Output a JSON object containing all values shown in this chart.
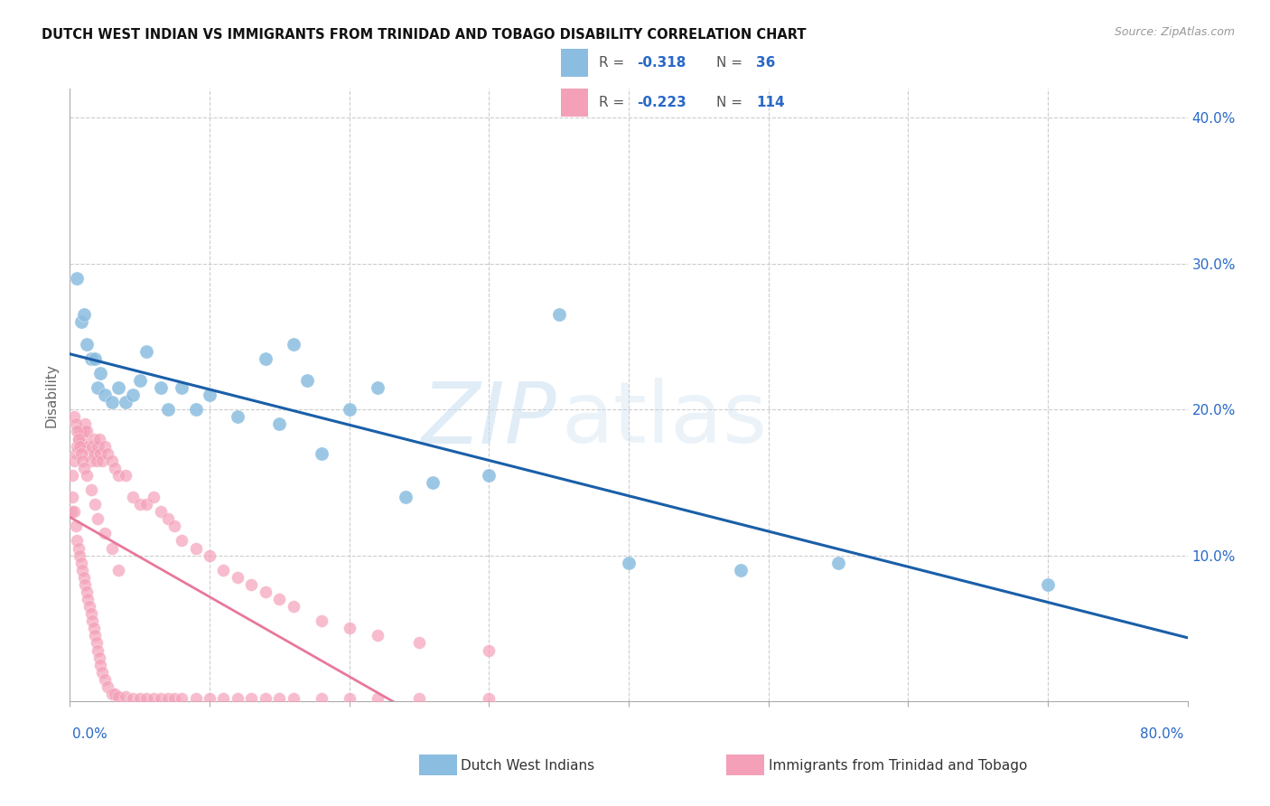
{
  "title": "DUTCH WEST INDIAN VS IMMIGRANTS FROM TRINIDAD AND TOBAGO DISABILITY CORRELATION CHART",
  "source": "Source: ZipAtlas.com",
  "ylabel": "Disability",
  "xmin": 0.0,
  "xmax": 0.8,
  "ymin": 0.0,
  "ymax": 0.42,
  "color_blue_scatter": "#8bbde0",
  "color_pink_scatter": "#f4a0b8",
  "color_blue_line": "#1a5fa8",
  "color_pink_line": "#e8789a",
  "color_text_blue": "#2868c8",
  "color_grid": "#cccccc",
  "r_blue": "-0.318",
  "n_blue": "36",
  "r_pink": "-0.223",
  "n_pink": "114",
  "blue_x": [
    0.005,
    0.008,
    0.01,
    0.012,
    0.015,
    0.018,
    0.02,
    0.022,
    0.025,
    0.03,
    0.035,
    0.04,
    0.045,
    0.05,
    0.055,
    0.065,
    0.07,
    0.08,
    0.09,
    0.1,
    0.12,
    0.14,
    0.15,
    0.16,
    0.17,
    0.18,
    0.2,
    0.22,
    0.24,
    0.26,
    0.3,
    0.35,
    0.4,
    0.48,
    0.55,
    0.7
  ],
  "blue_y": [
    0.29,
    0.26,
    0.265,
    0.245,
    0.235,
    0.235,
    0.215,
    0.225,
    0.21,
    0.205,
    0.215,
    0.205,
    0.21,
    0.22,
    0.24,
    0.215,
    0.2,
    0.215,
    0.2,
    0.21,
    0.195,
    0.235,
    0.19,
    0.245,
    0.22,
    0.17,
    0.2,
    0.215,
    0.14,
    0.15,
    0.155,
    0.265,
    0.095,
    0.09,
    0.095,
    0.08
  ],
  "pink_x": [
    0.001,
    0.002,
    0.003,
    0.004,
    0.005,
    0.006,
    0.007,
    0.008,
    0.009,
    0.01,
    0.011,
    0.012,
    0.013,
    0.014,
    0.015,
    0.016,
    0.017,
    0.018,
    0.019,
    0.02,
    0.021,
    0.022,
    0.023,
    0.025,
    0.027,
    0.03,
    0.032,
    0.035,
    0.04,
    0.045,
    0.05,
    0.055,
    0.06,
    0.065,
    0.07,
    0.075,
    0.08,
    0.09,
    0.1,
    0.11,
    0.12,
    0.13,
    0.14,
    0.15,
    0.16,
    0.18,
    0.2,
    0.22,
    0.25,
    0.3,
    0.002,
    0.003,
    0.004,
    0.005,
    0.006,
    0.007,
    0.008,
    0.009,
    0.01,
    0.011,
    0.012,
    0.013,
    0.014,
    0.015,
    0.016,
    0.017,
    0.018,
    0.019,
    0.02,
    0.021,
    0.022,
    0.023,
    0.025,
    0.027,
    0.03,
    0.032,
    0.035,
    0.04,
    0.045,
    0.05,
    0.055,
    0.06,
    0.065,
    0.07,
    0.075,
    0.08,
    0.09,
    0.1,
    0.11,
    0.12,
    0.13,
    0.14,
    0.15,
    0.16,
    0.18,
    0.2,
    0.22,
    0.25,
    0.3,
    0.003,
    0.004,
    0.005,
    0.006,
    0.007,
    0.008,
    0.009,
    0.01,
    0.012,
    0.015,
    0.018,
    0.02,
    0.025,
    0.03,
    0.035
  ],
  "pink_y": [
    0.13,
    0.155,
    0.165,
    0.17,
    0.175,
    0.18,
    0.185,
    0.175,
    0.18,
    0.185,
    0.19,
    0.185,
    0.175,
    0.17,
    0.165,
    0.175,
    0.18,
    0.17,
    0.165,
    0.175,
    0.18,
    0.17,
    0.165,
    0.175,
    0.17,
    0.165,
    0.16,
    0.155,
    0.155,
    0.14,
    0.135,
    0.135,
    0.14,
    0.13,
    0.125,
    0.12,
    0.11,
    0.105,
    0.1,
    0.09,
    0.085,
    0.08,
    0.075,
    0.07,
    0.065,
    0.055,
    0.05,
    0.045,
    0.04,
    0.035,
    0.14,
    0.13,
    0.12,
    0.11,
    0.105,
    0.1,
    0.095,
    0.09,
    0.085,
    0.08,
    0.075,
    0.07,
    0.065,
    0.06,
    0.055,
    0.05,
    0.045,
    0.04,
    0.035,
    0.03,
    0.025,
    0.02,
    0.015,
    0.01,
    0.005,
    0.005,
    0.003,
    0.003,
    0.002,
    0.002,
    0.002,
    0.002,
    0.002,
    0.002,
    0.002,
    0.002,
    0.002,
    0.002,
    0.002,
    0.002,
    0.002,
    0.002,
    0.002,
    0.002,
    0.002,
    0.002,
    0.002,
    0.002,
    0.002,
    0.195,
    0.19,
    0.185,
    0.18,
    0.175,
    0.17,
    0.165,
    0.16,
    0.155,
    0.145,
    0.135,
    0.125,
    0.115,
    0.105,
    0.09
  ]
}
